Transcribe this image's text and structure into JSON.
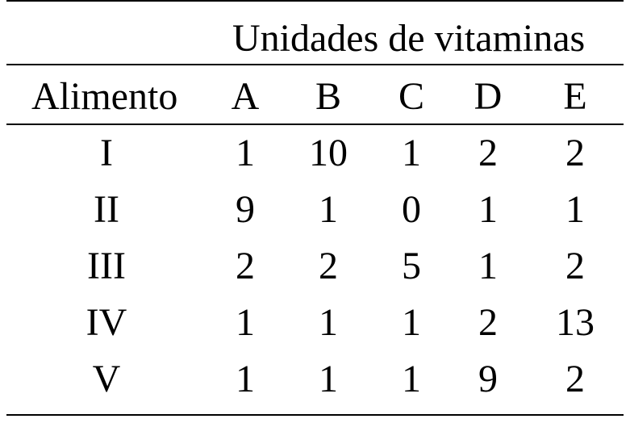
{
  "table": {
    "group_header": "Unidades de vitaminas",
    "row_header": "Alimento",
    "columns": [
      "A",
      "B",
      "C",
      "D",
      "E"
    ],
    "rows": [
      {
        "label": "I",
        "values": [
          "1",
          "10",
          "1",
          "2",
          "2"
        ]
      },
      {
        "label": "II",
        "values": [
          "9",
          "1",
          "0",
          "1",
          "1"
        ]
      },
      {
        "label": "III",
        "values": [
          "2",
          "2",
          "5",
          "1",
          "2"
        ]
      },
      {
        "label": "IV",
        "values": [
          "1",
          "1",
          "1",
          "2",
          "13"
        ]
      },
      {
        "label": "V",
        "values": [
          "1",
          "1",
          "1",
          "9",
          "2"
        ]
      }
    ]
  }
}
